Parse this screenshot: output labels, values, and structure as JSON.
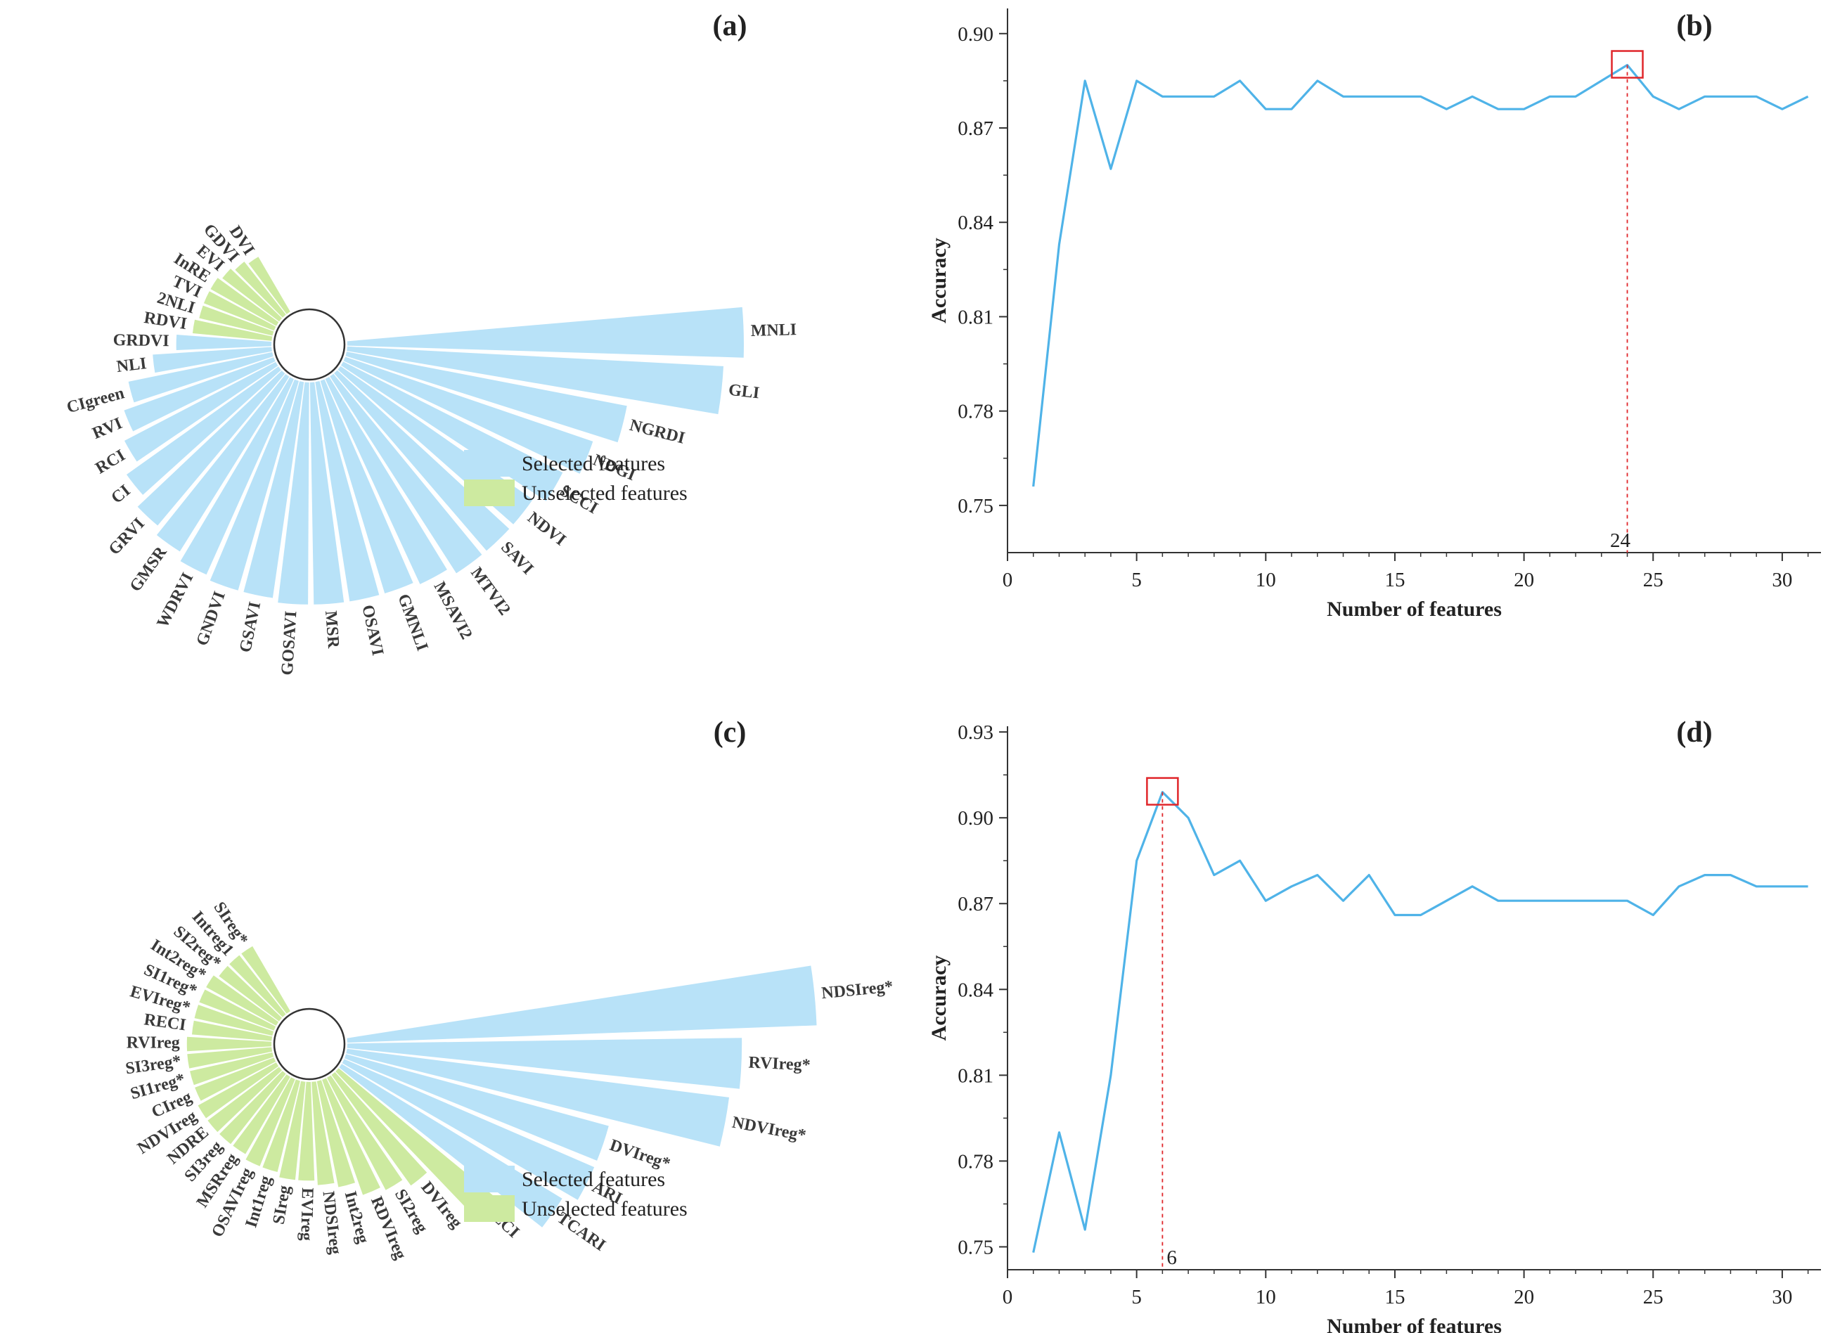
{
  "colors": {
    "selected": "#B8E2F8",
    "unselected": "#CDEAA0",
    "line": "#4FB3E8",
    "marker": "#E0262A",
    "axis": "#333333"
  },
  "chart_data": [
    {
      "panel": "a",
      "type": "radial-bar",
      "panel_label": "(a)",
      "legend": {
        "selected": "Selected features",
        "unselected": "Unselected features",
        "placement": "bottom-right"
      },
      "features": [
        {
          "name": "MNLI",
          "value": 1.0,
          "selected": true
        },
        {
          "name": "GLI",
          "value": 0.95,
          "selected": true
        },
        {
          "name": "NGRDI",
          "value": 0.72,
          "selected": true
        },
        {
          "name": "NDGI",
          "value": 0.66,
          "selected": true
        },
        {
          "name": "SCCI",
          "value": 0.62,
          "selected": true
        },
        {
          "name": "NDVI",
          "value": 0.59,
          "selected": true
        },
        {
          "name": "SAVI",
          "value": 0.59,
          "selected": true
        },
        {
          "name": "MTVI2",
          "value": 0.59,
          "selected": true
        },
        {
          "name": "MSAVI2",
          "value": 0.57,
          "selected": true
        },
        {
          "name": "GMNLI",
          "value": 0.56,
          "selected": true
        },
        {
          "name": "OSAVI",
          "value": 0.56,
          "selected": true
        },
        {
          "name": "MSR",
          "value": 0.56,
          "selected": true
        },
        {
          "name": "GOSAVI",
          "value": 0.56,
          "selected": true
        },
        {
          "name": "GSAVI",
          "value": 0.55,
          "selected": true
        },
        {
          "name": "GNDVI",
          "value": 0.55,
          "selected": true
        },
        {
          "name": "WDRVI",
          "value": 0.54,
          "selected": true
        },
        {
          "name": "GMSR",
          "value": 0.52,
          "selected": true
        },
        {
          "name": "GRVI",
          "value": 0.5,
          "selected": true
        },
        {
          "name": "CI",
          "value": 0.47,
          "selected": true
        },
        {
          "name": "RCI",
          "value": 0.43,
          "selected": true
        },
        {
          "name": "RVI",
          "value": 0.4,
          "selected": true
        },
        {
          "name": "CIgreen",
          "value": 0.37,
          "selected": true
        },
        {
          "name": "NLI",
          "value": 0.3,
          "selected": true
        },
        {
          "name": "GRDVI",
          "value": 0.24,
          "selected": true
        },
        {
          "name": "RDVI",
          "value": 0.2,
          "selected": false
        },
        {
          "name": "2NLI",
          "value": 0.19,
          "selected": false
        },
        {
          "name": "TVI",
          "value": 0.19,
          "selected": false
        },
        {
          "name": "InRE",
          "value": 0.19,
          "selected": false
        },
        {
          "name": "EVI",
          "value": 0.18,
          "selected": false
        },
        {
          "name": "GDVI",
          "value": 0.17,
          "selected": false
        },
        {
          "name": "DVI",
          "value": 0.16,
          "selected": false
        }
      ]
    },
    {
      "panel": "b",
      "type": "line",
      "panel_label": "(b)",
      "xlabel": "Number of features",
      "ylabel": "Accuracy",
      "xlim": [
        0,
        31.5
      ],
      "ylim": [
        0.735,
        0.908
      ],
      "xticks": [
        0,
        5,
        10,
        15,
        20,
        25,
        30
      ],
      "yticks": [
        0.75,
        0.78,
        0.81,
        0.84,
        0.87,
        0.9
      ],
      "ytick_labels": [
        "0.75",
        "0.78",
        "0.81",
        "0.84",
        "0.87",
        "0.90"
      ],
      "x": [
        1,
        2,
        3,
        4,
        5,
        6,
        7,
        8,
        9,
        10,
        11,
        12,
        13,
        14,
        15,
        16,
        17,
        18,
        19,
        20,
        21,
        22,
        23,
        24,
        25,
        26,
        27,
        28,
        29,
        30,
        31
      ],
      "y": [
        0.756,
        0.833,
        0.885,
        0.857,
        0.885,
        0.88,
        0.88,
        0.88,
        0.885,
        0.876,
        0.876,
        0.885,
        0.88,
        0.88,
        0.88,
        0.88,
        0.876,
        0.88,
        0.876,
        0.876,
        0.88,
        0.88,
        0.885,
        0.89,
        0.88,
        0.876,
        0.88,
        0.88,
        0.88,
        0.876,
        0.88
      ],
      "optimum": {
        "x": 24,
        "y": 0.89,
        "label": "24"
      }
    },
    {
      "panel": "c",
      "type": "radial-bar",
      "panel_label": "(c)",
      "legend": {
        "selected": "Selected features",
        "unselected": "Unselected features",
        "placement": "bottom-right"
      },
      "features": [
        {
          "name": "NDSIreg*",
          "value": 1.0,
          "selected": true
        },
        {
          "name": "RVIreg*",
          "value": 0.84,
          "selected": true
        },
        {
          "name": "NDVIreg*",
          "value": 0.82,
          "selected": true
        },
        {
          "name": "DVIreg*",
          "value": 0.58,
          "selected": true
        },
        {
          "name": "ARI",
          "value": 0.58,
          "selected": true
        },
        {
          "name": "TCARI",
          "value": 0.55,
          "selected": true
        },
        {
          "name": "LCI",
          "value": 0.44,
          "selected": false
        },
        {
          "name": "DVIreg",
          "value": 0.29,
          "selected": false
        },
        {
          "name": "SI2reg",
          "value": 0.27,
          "selected": false
        },
        {
          "name": "RDVIreg",
          "value": 0.26,
          "selected": false
        },
        {
          "name": "Int2reg",
          "value": 0.23,
          "selected": false
        },
        {
          "name": "NDSIreg",
          "value": 0.22,
          "selected": false
        },
        {
          "name": "EVIreg",
          "value": 0.21,
          "selected": false
        },
        {
          "name": "SIreg",
          "value": 0.21,
          "selected": false
        },
        {
          "name": "Int1reg",
          "value": 0.2,
          "selected": false
        },
        {
          "name": "OSAVIreg",
          "value": 0.2,
          "selected": false
        },
        {
          "name": "MSRreg",
          "value": 0.19,
          "selected": false
        },
        {
          "name": "SI3reg",
          "value": 0.19,
          "selected": false
        },
        {
          "name": "NDRE",
          "value": 0.19,
          "selected": false
        },
        {
          "name": "NDVIreg",
          "value": 0.19,
          "selected": false
        },
        {
          "name": "CIreg",
          "value": 0.18,
          "selected": false
        },
        {
          "name": "SI1reg*",
          "value": 0.18,
          "selected": false
        },
        {
          "name": "SI3reg*",
          "value": 0.18,
          "selected": false
        },
        {
          "name": "RVIreg",
          "value": 0.18,
          "selected": false
        },
        {
          "name": "RECI",
          "value": 0.17,
          "selected": false
        },
        {
          "name": "EVIreg*",
          "value": 0.17,
          "selected": false
        },
        {
          "name": "SI1reg*",
          "value": 0.17,
          "selected": false
        },
        {
          "name": "Int2reg*",
          "value": 0.17,
          "selected": false
        },
        {
          "name": "SI2reg*",
          "value": 0.16,
          "selected": false
        },
        {
          "name": "Intreg1",
          "value": 0.16,
          "selected": false
        },
        {
          "name": "SIreg*",
          "value": 0.16,
          "selected": false
        }
      ]
    },
    {
      "panel": "d",
      "type": "line",
      "panel_label": "(d)",
      "xlabel": "Number of features",
      "ylabel": "Accuracy",
      "xlim": [
        0,
        31.5
      ],
      "ylim": [
        0.742,
        0.932
      ],
      "xticks": [
        0,
        5,
        10,
        15,
        20,
        25,
        30
      ],
      "yticks": [
        0.75,
        0.78,
        0.81,
        0.84,
        0.87,
        0.9,
        0.93
      ],
      "ytick_labels": [
        "0.75",
        "0.78",
        "0.81",
        "0.84",
        "0.87",
        "0.90",
        "0.93"
      ],
      "x": [
        1,
        2,
        3,
        4,
        5,
        6,
        7,
        8,
        9,
        10,
        11,
        12,
        13,
        14,
        15,
        16,
        17,
        18,
        19,
        20,
        21,
        22,
        23,
        24,
        25,
        26,
        27,
        28,
        29,
        30,
        31
      ],
      "y": [
        0.748,
        0.79,
        0.756,
        0.81,
        0.885,
        0.909,
        0.9,
        0.88,
        0.885,
        0.871,
        0.876,
        0.88,
        0.871,
        0.88,
        0.866,
        0.866,
        0.871,
        0.876,
        0.871,
        0.871,
        0.871,
        0.871,
        0.871,
        0.871,
        0.866,
        0.876,
        0.88,
        0.88,
        0.876,
        0.876,
        0.876
      ],
      "optimum": {
        "x": 6,
        "y": 0.909,
        "label": "6"
      }
    }
  ]
}
